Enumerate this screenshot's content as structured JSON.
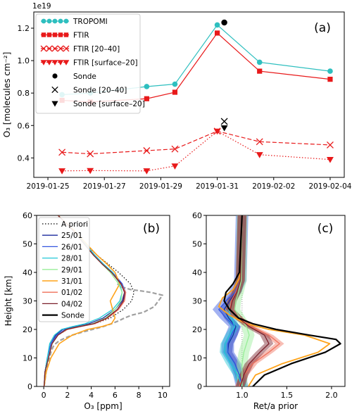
{
  "chart_data": [
    {
      "panel": "a",
      "type": "line",
      "panel_label": "(a)",
      "ylabel": "O₃ [molecules cm⁻²]",
      "y_exponent": "1e19",
      "ylim": [
        0.28,
        1.3
      ],
      "y_ticks": [
        0.4,
        0.6,
        0.8,
        1.0,
        1.2
      ],
      "xlim": [
        "2019-01-24T12:00",
        "2019-02-04T12:00"
      ],
      "x_ticks": [
        "2019-01-25",
        "2019-01-27",
        "2019-01-29",
        "2019-01-31",
        "2019-02-02",
        "2019-02-04"
      ],
      "legend_position": "top-left",
      "series": [
        {
          "name": "TROPOMI",
          "color": "#2ebfbf",
          "line": "solid",
          "marker": "circle",
          "x": [
            "2019-01-25T12:00",
            "2019-01-26T12:00",
            "2019-01-28T12:00",
            "2019-01-29T12:00",
            "2019-01-31T00:00",
            "2019-02-01T12:00",
            "2019-02-04T00:00"
          ],
          "values": [
            0.79,
            0.8,
            0.84,
            0.855,
            1.22,
            0.99,
            0.935
          ]
        },
        {
          "name": "FTIR",
          "color": "#e8191a",
          "line": "solid",
          "marker": "square",
          "x": [
            "2019-01-25T12:00",
            "2019-01-26T12:00",
            "2019-01-28T12:00",
            "2019-01-29T12:00",
            "2019-01-31T00:00",
            "2019-02-01T12:00",
            "2019-02-04T00:00"
          ],
          "values": [
            0.755,
            0.745,
            0.765,
            0.805,
            1.17,
            0.935,
            0.885
          ]
        },
        {
          "name": "FTIR [20–40]",
          "color": "#e8191a",
          "line": "dashed",
          "marker": "x",
          "x": [
            "2019-01-25T12:00",
            "2019-01-26T12:00",
            "2019-01-28T12:00",
            "2019-01-29T12:00",
            "2019-01-31T00:00",
            "2019-02-01T12:00",
            "2019-02-04T00:00"
          ],
          "values": [
            0.435,
            0.425,
            0.445,
            0.455,
            0.565,
            0.5,
            0.48
          ]
        },
        {
          "name": "FTIR [surface–20]",
          "color": "#e8191a",
          "line": "dotted",
          "marker": "triangle-down",
          "x": [
            "2019-01-25T12:00",
            "2019-01-26T12:00",
            "2019-01-28T12:00",
            "2019-01-29T12:00",
            "2019-01-31T00:00",
            "2019-02-01T12:00",
            "2019-02-04T00:00"
          ],
          "values": [
            0.32,
            0.322,
            0.32,
            0.35,
            0.565,
            0.42,
            0.39
          ]
        },
        {
          "name": "Sonde",
          "color": "#000000",
          "line": "none",
          "marker": "circle",
          "x": [
            "2019-01-31T06:00"
          ],
          "values": [
            1.235
          ]
        },
        {
          "name": "Sonde [20–40]",
          "color": "#000000",
          "line": "none",
          "marker": "x",
          "x": [
            "2019-01-31T06:00"
          ],
          "values": [
            0.625
          ]
        },
        {
          "name": "Sonde [surface–20]",
          "color": "#000000",
          "line": "none",
          "marker": "triangle-down",
          "x": [
            "2019-01-31T06:00"
          ],
          "values": [
            0.585
          ]
        }
      ]
    },
    {
      "panel": "b",
      "type": "line",
      "panel_label": "(b)",
      "xlabel": "O₃ [ppm]",
      "ylabel": "Height [km]",
      "xlim": [
        -0.6,
        10.6
      ],
      "ylim": [
        0,
        60
      ],
      "x_ticks": [
        0,
        2,
        4,
        6,
        8,
        10
      ],
      "y_ticks": [
        0,
        10,
        20,
        30,
        40,
        50,
        60
      ],
      "legend_position": "top-left",
      "series": [
        {
          "name": "A priori",
          "color": "#000000",
          "line": "dotted",
          "width": 1.2,
          "x": [
            0.03,
            0.1,
            0.4,
            0.7,
            1.2,
            2.0,
            3.0,
            4.3,
            5.6,
            6.7,
            7.4,
            7.6,
            7.3,
            6.3,
            5.4,
            4.5,
            3.5,
            2.4,
            1.2
          ],
          "y": [
            0,
            5,
            10,
            15,
            18,
            20,
            21,
            22,
            24,
            27,
            30,
            33,
            36,
            40,
            43,
            46,
            50,
            55,
            60
          ]
        },
        {
          "name": "25/01",
          "color": "#1b2a9e",
          "line": "solid",
          "width": 1.3,
          "x": [
            0.03,
            0.1,
            0.3,
            0.6,
            1.0,
            1.6,
            2.6,
            3.8,
            5.0,
            6.0,
            6.6,
            6.8,
            6.6,
            5.8,
            5.0,
            4.3,
            3.5,
            2.4,
            1.2
          ],
          "y": [
            0,
            5,
            10,
            15,
            18,
            20,
            21,
            22,
            24,
            27,
            30,
            33,
            36,
            40,
            43,
            46,
            50,
            55,
            60
          ]
        },
        {
          "name": "26/01",
          "color": "#3355e0",
          "line": "solid",
          "width": 1.3,
          "x": [
            0.03,
            0.1,
            0.3,
            0.6,
            1.1,
            1.8,
            2.9,
            4.1,
            5.3,
            6.2,
            6.7,
            6.9,
            6.6,
            5.8,
            5.0,
            4.3,
            3.5,
            2.4,
            1.2
          ],
          "y": [
            0,
            5,
            10,
            15,
            18,
            20,
            21,
            22,
            24,
            27,
            30,
            33,
            36,
            40,
            43,
            46,
            50,
            55,
            60
          ]
        },
        {
          "name": "28/01",
          "color": "#22c8d8",
          "line": "solid",
          "width": 1.3,
          "x": [
            0.03,
            0.1,
            0.3,
            0.5,
            0.9,
            1.5,
            2.4,
            3.5,
            4.7,
            5.8,
            6.4,
            6.6,
            6.4,
            5.8,
            5.0,
            4.3,
            3.5,
            2.4,
            1.2
          ],
          "y": [
            0,
            5,
            10,
            15,
            18,
            20,
            21,
            22,
            24,
            27,
            30,
            33,
            36,
            40,
            43,
            46,
            50,
            55,
            60
          ]
        },
        {
          "name": "29/01",
          "color": "#98ee98",
          "line": "solid",
          "width": 1.3,
          "x": [
            0.03,
            0.1,
            0.4,
            0.7,
            1.2,
            1.9,
            2.9,
            4.1,
            5.2,
            6.0,
            6.5,
            6.6,
            6.3,
            5.6,
            4.9,
            4.2,
            3.4,
            2.4,
            1.2
          ],
          "y": [
            0,
            5,
            10,
            15,
            18,
            20,
            21,
            22,
            24,
            27,
            30,
            33,
            36,
            40,
            43,
            46,
            50,
            55,
            60
          ]
        },
        {
          "name": "31/01",
          "color": "#ffa31a",
          "line": "solid",
          "width": 1.6,
          "x": [
            0.03,
            0.2,
            0.6,
            1.3,
            2.4,
            3.7,
            4.9,
            5.7,
            6.0,
            5.8,
            5.6,
            6.0,
            6.4,
            6.0,
            5.3,
            4.5,
            3.6,
            2.5,
            1.2
          ],
          "y": [
            0,
            5,
            10,
            15,
            18,
            20,
            21,
            22,
            24,
            27,
            30,
            33,
            36,
            40,
            43,
            46,
            50,
            55,
            60
          ]
        },
        {
          "name": "01/02",
          "color": "#ef6f5a",
          "line": "solid",
          "width": 1.3,
          "x": [
            0.03,
            0.1,
            0.4,
            0.7,
            1.2,
            2.0,
            3.1,
            4.3,
            5.4,
            6.3,
            6.8,
            6.9,
            6.5,
            5.7,
            4.9,
            4.2,
            3.4,
            2.4,
            1.2
          ],
          "y": [
            0,
            5,
            10,
            15,
            18,
            20,
            21,
            22,
            24,
            27,
            30,
            33,
            36,
            40,
            43,
            46,
            50,
            55,
            60
          ]
        },
        {
          "name": "04/02",
          "color": "#7a1f2a",
          "line": "solid",
          "width": 1.3,
          "x": [
            0.03,
            0.1,
            0.4,
            0.7,
            1.2,
            1.9,
            3.0,
            4.2,
            5.3,
            6.2,
            6.7,
            6.8,
            6.5,
            5.7,
            4.9,
            4.2,
            3.4,
            2.4,
            1.2
          ],
          "y": [
            0,
            5,
            10,
            15,
            18,
            20,
            21,
            22,
            24,
            27,
            30,
            33,
            36,
            40,
            43,
            46,
            50,
            55,
            60
          ]
        },
        {
          "name": "Sonde",
          "color": "#000000",
          "line": "solid",
          "width": 2.2,
          "x": [
            0.03,
            0.2,
            0.4,
            0.6,
            0.8,
            1.0,
            1.4,
            2.0,
            3.0,
            4.5,
            5.8,
            6.7,
            7.1,
            7.2,
            7.0,
            6.5,
            5.6,
            4.6,
            3.5,
            2.3,
            1.2
          ],
          "y": [
            0,
            5,
            10,
            13,
            15,
            16,
            17,
            18,
            19,
            20,
            21,
            22,
            23,
            25,
            28,
            33,
            38,
            42,
            46,
            50,
            55
          ]
        },
        {
          "name": "",
          "color": "#a0a0a0",
          "line": "dashed",
          "width": 2.2,
          "x": [
            0.03,
            0.2,
            0.3,
            0.5,
            0.6,
            0.8,
            1.0,
            1.3,
            1.8,
            2.4,
            3.2,
            4.1,
            5.0,
            5.7,
            6.3,
            6.8,
            7.4,
            8.4,
            9.3,
            10.0,
            9.0,
            8.2,
            7.3,
            6.5,
            6.2
          ],
          "y": [
            0,
            5,
            8,
            10,
            12,
            14,
            15,
            16,
            17,
            18,
            19,
            20,
            21,
            22,
            23,
            24,
            25,
            26,
            28,
            32,
            33,
            33.5,
            34,
            35,
            36
          ]
        }
      ]
    },
    {
      "panel": "c",
      "type": "line",
      "panel_label": "(c)",
      "xlabel": "Ret/a prior",
      "xlim": [
        0.6,
        2.15
      ],
      "ylim": [
        0,
        60
      ],
      "x_ticks": [
        1.0,
        1.5,
        2.0
      ],
      "x_tick_labels": [
        "1.0",
        "1.5",
        "2.0"
      ],
      "y_ticks": [
        0,
        10,
        20,
        30,
        40,
        50,
        60
      ],
      "series": [
        {
          "name": "25/01",
          "color": "#1b2a9e",
          "line": "solid",
          "width": 1.3,
          "band": 0.05,
          "x": [
            1.0,
            0.97,
            0.92,
            0.84,
            0.85,
            0.9,
            0.93,
            0.85,
            0.8,
            0.86,
            0.93,
            0.98,
            1.0
          ],
          "y": [
            0,
            4,
            8,
            12,
            15,
            18,
            21,
            24,
            27,
            30,
            33,
            37,
            60
          ]
        },
        {
          "name": "26/01",
          "color": "#3355e0",
          "line": "solid",
          "width": 1.3,
          "band": 0.07,
          "x": [
            1.0,
            0.97,
            0.92,
            0.84,
            0.84,
            0.88,
            0.92,
            0.82,
            0.74,
            0.82,
            0.92,
            0.98,
            1.0
          ],
          "y": [
            0,
            4,
            8,
            12,
            15,
            18,
            21,
            24,
            27,
            30,
            33,
            37,
            60
          ]
        },
        {
          "name": "28/01",
          "color": "#22c8d8",
          "line": "solid",
          "width": 1.3,
          "band": 0.05,
          "x": [
            1.0,
            0.95,
            0.87,
            0.8,
            0.81,
            0.86,
            0.92,
            0.88,
            0.85,
            0.88,
            0.94,
            0.98,
            1.0
          ],
          "y": [
            0,
            4,
            8,
            12,
            15,
            18,
            21,
            24,
            27,
            30,
            33,
            37,
            60
          ]
        },
        {
          "name": "29/01",
          "color": "#98ee98",
          "line": "solid",
          "width": 1.3,
          "band": 0.06,
          "x": [
            1.0,
            1.0,
            1.0,
            1.02,
            1.05,
            1.08,
            1.05,
            0.98,
            0.92,
            0.93,
            0.96,
            0.99,
            1.0
          ],
          "y": [
            0,
            4,
            8,
            12,
            15,
            18,
            21,
            24,
            27,
            30,
            33,
            37,
            60
          ]
        },
        {
          "name": "31/01",
          "color": "#ffa31a",
          "line": "solid",
          "width": 1.8,
          "band": 0,
          "x": [
            1.07,
            1.15,
            1.45,
            1.85,
            1.98,
            1.7,
            1.3,
            1.05,
            0.86,
            0.74,
            0.78,
            0.9,
            0.97,
            1.0
          ],
          "y": [
            0,
            4,
            8,
            12,
            15,
            18,
            20,
            22,
            25,
            28,
            31,
            34,
            38,
            60
          ]
        },
        {
          "name": "01/02",
          "color": "#ef6f5a",
          "line": "solid",
          "width": 1.3,
          "band": 0.05,
          "x": [
            0.97,
            1.02,
            1.12,
            1.3,
            1.42,
            1.3,
            1.1,
            0.96,
            0.86,
            0.88,
            0.93,
            0.98,
            1.0
          ],
          "y": [
            0,
            4,
            8,
            12,
            15,
            18,
            21,
            24,
            27,
            30,
            33,
            37,
            60
          ]
        },
        {
          "name": "04/02",
          "color": "#7a1f2a",
          "line": "solid",
          "width": 1.3,
          "band": 0.05,
          "x": [
            0.98,
            1.02,
            1.08,
            1.2,
            1.3,
            1.25,
            1.08,
            0.96,
            0.87,
            0.89,
            0.94,
            0.98,
            1.0
          ],
          "y": [
            0,
            4,
            8,
            12,
            15,
            18,
            21,
            24,
            27,
            30,
            33,
            37,
            60
          ]
        },
        {
          "name": "Sonde",
          "color": "#000000",
          "line": "solid",
          "width": 2.2,
          "band": 0,
          "x": [
            1.12,
            1.25,
            1.55,
            1.93,
            2.1,
            2.05,
            1.75,
            1.38,
            1.12,
            0.96,
            0.86,
            0.8,
            0.82,
            0.9,
            0.97,
            1.0
          ],
          "y": [
            0,
            4,
            8,
            12,
            15,
            16.5,
            18,
            20,
            22,
            24,
            27,
            30,
            33,
            36,
            40,
            60
          ]
        }
      ]
    }
  ]
}
